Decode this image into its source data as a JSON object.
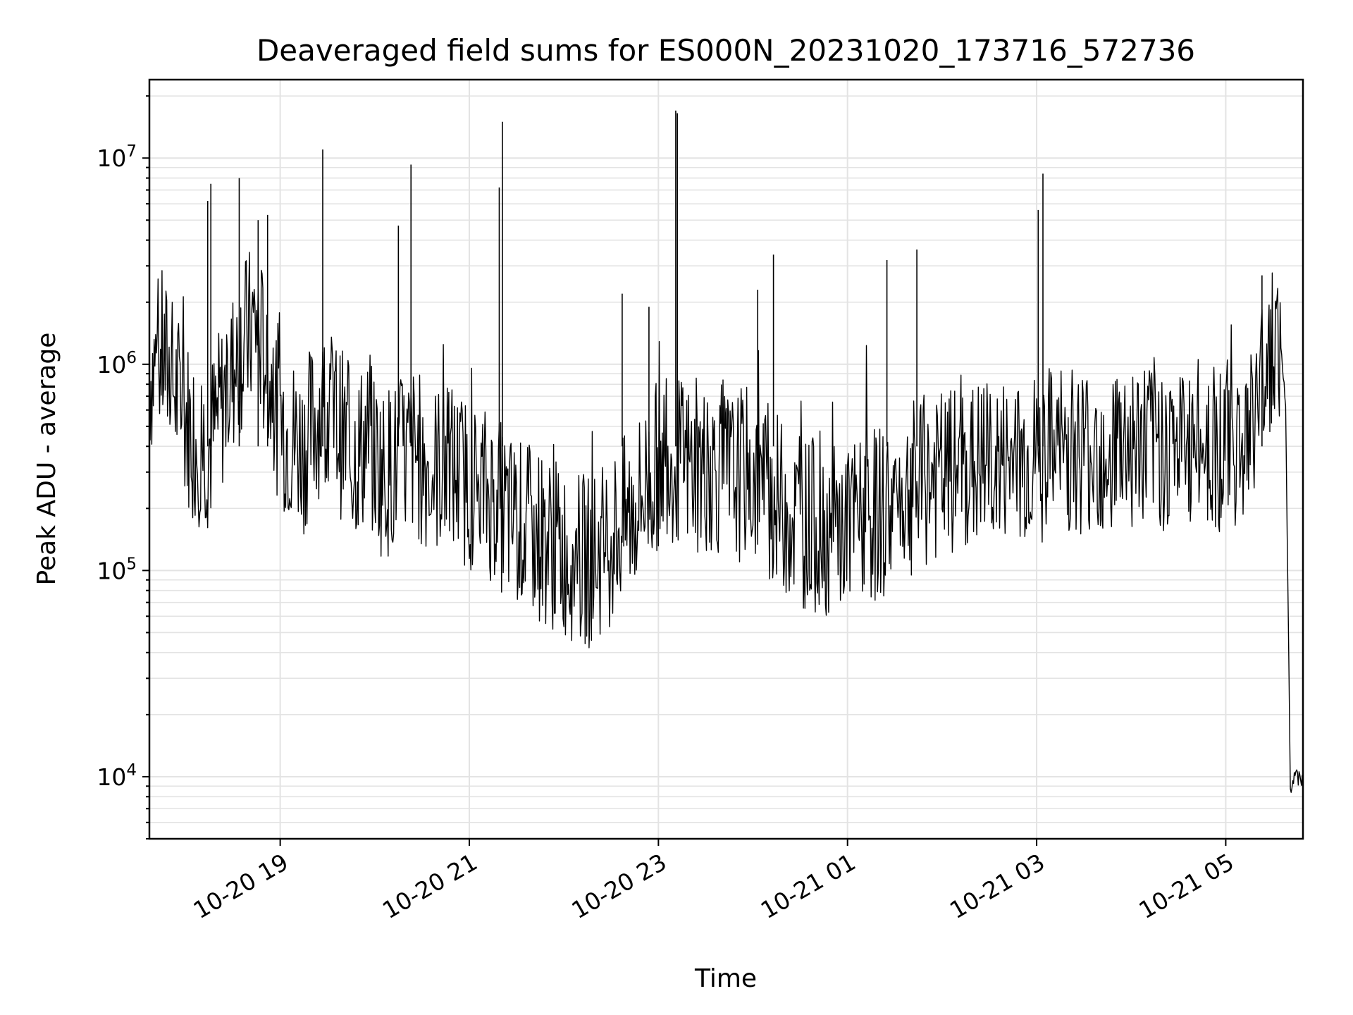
{
  "chart_data": {
    "type": "line",
    "title": "Deaveraged field sums for ES000N_20231020_173716_572736",
    "xlabel": "Time",
    "ylabel": "Peak ADU - average",
    "y_scale": "log",
    "ylim": [
      5000,
      24000000
    ],
    "xlim": [
      "2023-10-20 17:37",
      "2023-10-21 05:49"
    ],
    "grid": true,
    "line_color": "#000000",
    "x_tick_labels": [
      "10-20 19",
      "10-20 21",
      "10-20 23",
      "10-21 01",
      "10-21 03",
      "10-21 05"
    ],
    "x_ticks": [
      "2023-10-20 19:00",
      "2023-10-20 21:00",
      "2023-10-20 23:00",
      "2023-10-21 01:00",
      "2023-10-21 03:00",
      "2023-10-21 05:00"
    ],
    "y_tick_labels": [
      {
        "base": "10",
        "exp": "4",
        "value": 10000
      },
      {
        "base": "10",
        "exp": "5",
        "value": 100000
      },
      {
        "base": "10",
        "exp": "6",
        "value": 1000000
      },
      {
        "base": "10",
        "exp": "7",
        "value": 10000000
      }
    ],
    "series": [
      {
        "x": [
          "2023-10-20 17:37",
          "2023-10-20 17:45",
          "2023-10-20 17:55",
          "2023-10-20 18:05",
          "2023-10-20 18:15",
          "2023-10-20 18:25",
          "2023-10-20 18:35",
          "2023-10-20 18:45",
          "2023-10-20 18:55",
          "2023-10-20 19:05",
          "2023-10-20 19:15",
          "2023-10-20 19:25",
          "2023-10-20 19:35",
          "2023-10-20 19:45",
          "2023-10-20 19:55",
          "2023-10-20 20:05",
          "2023-10-20 20:15",
          "2023-10-20 20:25",
          "2023-10-20 20:35",
          "2023-10-20 20:45",
          "2023-10-20 20:55",
          "2023-10-20 21:05",
          "2023-10-20 21:15",
          "2023-10-20 21:25",
          "2023-10-20 21:35",
          "2023-10-20 21:45",
          "2023-10-20 21:55",
          "2023-10-20 22:05",
          "2023-10-20 22:15",
          "2023-10-20 22:25",
          "2023-10-20 22:35",
          "2023-10-20 22:45",
          "2023-10-20 22:55",
          "2023-10-20 23:05",
          "2023-10-20 23:15",
          "2023-10-20 23:25",
          "2023-10-20 23:35",
          "2023-10-20 23:45",
          "2023-10-20 23:55",
          "2023-10-21 00:05",
          "2023-10-21 00:15",
          "2023-10-21 00:25",
          "2023-10-21 00:35",
          "2023-10-21 00:45",
          "2023-10-21 00:55",
          "2023-10-21 01:05",
          "2023-10-21 01:15",
          "2023-10-21 01:25",
          "2023-10-21 01:35",
          "2023-10-21 01:45",
          "2023-10-21 01:55",
          "2023-10-21 02:05",
          "2023-10-21 02:15",
          "2023-10-21 02:25",
          "2023-10-21 02:35",
          "2023-10-21 02:45",
          "2023-10-21 02:55",
          "2023-10-21 03:05",
          "2023-10-21 03:15",
          "2023-10-21 03:25",
          "2023-10-21 03:35",
          "2023-10-21 03:45",
          "2023-10-21 03:55",
          "2023-10-21 04:05",
          "2023-10-21 04:15",
          "2023-10-21 04:25",
          "2023-10-21 04:35",
          "2023-10-21 04:45",
          "2023-10-21 04:55",
          "2023-10-21 05:05",
          "2023-10-21 05:15",
          "2023-10-21 05:25",
          "2023-10-21 05:32",
          "2023-10-21 05:35",
          "2023-10-21 05:38",
          "2023-10-21 05:41",
          "2023-10-21 05:44",
          "2023-10-21 05:49"
        ],
        "y": [
          900000,
          1100000,
          700000,
          450000,
          400000,
          700000,
          1200000,
          1600000,
          700000,
          450000,
          400000,
          600000,
          550000,
          350000,
          420000,
          300000,
          330000,
          380000,
          300000,
          330000,
          280000,
          250000,
          230000,
          180000,
          160000,
          150000,
          130000,
          120000,
          110000,
          130000,
          160000,
          200000,
          280000,
          380000,
          330000,
          300000,
          320000,
          280000,
          300000,
          260000,
          220000,
          180000,
          170000,
          160000,
          150000,
          170000,
          180000,
          200000,
          230000,
          260000,
          280000,
          290000,
          300000,
          320000,
          320000,
          330000,
          340000,
          360000,
          380000,
          400000,
          380000,
          400000,
          420000,
          400000,
          420000,
          400000,
          380000,
          420000,
          400000,
          420000,
          430000,
          1000000,
          1500000,
          1200000,
          600000,
          9000,
          10000,
          9500
        ]
      }
    ],
    "spikes": [
      {
        "x": "2023-10-20 18:14",
        "y": 6200000
      },
      {
        "x": "2023-10-20 18:16",
        "y": 7500000
      },
      {
        "x": "2023-10-20 18:34",
        "y": 8000000
      },
      {
        "x": "2023-10-20 18:46",
        "y": 5000000
      },
      {
        "x": "2023-10-20 18:52",
        "y": 5300000
      },
      {
        "x": "2023-10-20 19:27",
        "y": 11000000
      },
      {
        "x": "2023-10-20 20:15",
        "y": 4700000
      },
      {
        "x": "2023-10-20 20:23",
        "y": 9300000
      },
      {
        "x": "2023-10-20 21:19",
        "y": 7200000
      },
      {
        "x": "2023-10-20 21:21",
        "y": 15000000
      },
      {
        "x": "2023-10-20 22:37",
        "y": 2200000
      },
      {
        "x": "2023-10-20 22:54",
        "y": 1900000
      },
      {
        "x": "2023-10-20 23:11",
        "y": 17000000
      },
      {
        "x": "2023-10-20 23:12",
        "y": 16500000
      },
      {
        "x": "2023-10-21 00:03",
        "y": 2300000
      },
      {
        "x": "2023-10-21 00:13",
        "y": 3400000
      },
      {
        "x": "2023-10-21 01:25",
        "y": 3200000
      },
      {
        "x": "2023-10-21 01:44",
        "y": 3600000
      },
      {
        "x": "2023-10-21 03:01",
        "y": 5600000
      },
      {
        "x": "2023-10-21 03:04",
        "y": 8400000
      },
      {
        "x": "2023-10-21 05:23",
        "y": 2700000
      }
    ]
  }
}
